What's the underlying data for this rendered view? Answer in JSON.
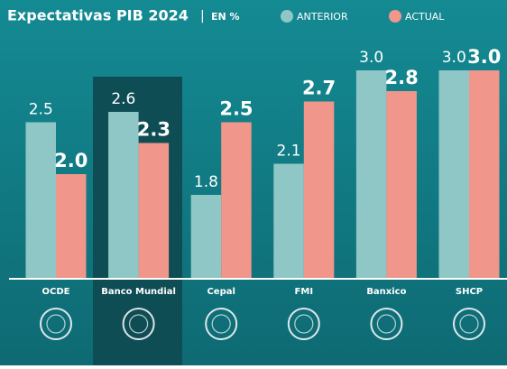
{
  "chart_data": {
    "type": "bar",
    "title": "Expectativas PIB 2024",
    "subtitle": "EN %",
    "categories": [
      "OCDE",
      "Banco Mundial",
      "Cepal",
      "FMI",
      "Banxico",
      "SHCP"
    ],
    "series": [
      {
        "name": "ANTERIOR",
        "color": "#8fc7c6",
        "values": [
          2.5,
          2.6,
          1.8,
          2.1,
          3.0,
          3.0
        ],
        "value_labels": [
          "2.5",
          "2.6",
          "1.8",
          "2.1",
          "3.0",
          "3.0"
        ]
      },
      {
        "name": "ACTUAL",
        "color": "#f0968a",
        "values": [
          2.0,
          2.3,
          2.5,
          2.7,
          2.8,
          3.0
        ],
        "value_labels": [
          "2.0",
          "2.3",
          "2.5",
          "2.7",
          "2.8",
          "3.0"
        ]
      }
    ],
    "ylim": [
      1,
      3
    ]
  }
}
